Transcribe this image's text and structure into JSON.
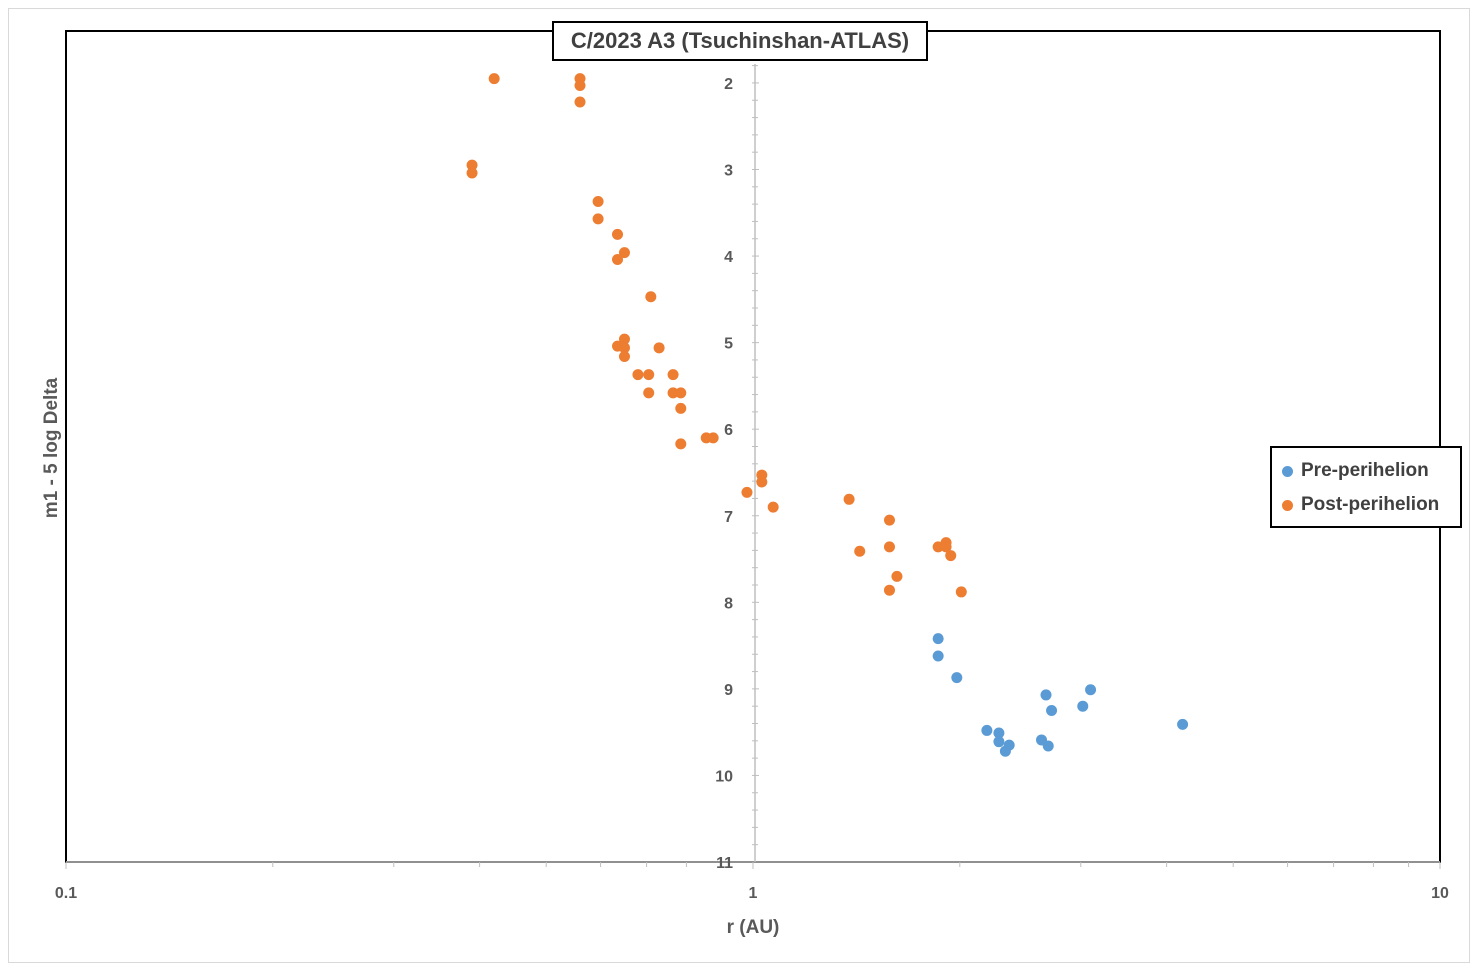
{
  "chart_data": {
    "type": "scatter",
    "title": "C/2023 A3 (Tsuchinshan-ATLAS)",
    "xlabel": "r (AU)",
    "ylabel": "m1 - 5 log Delta",
    "x_scale": "log",
    "xlim": [
      0.1,
      10
    ],
    "ylim": [
      11,
      1.4
    ],
    "y_inverted": true,
    "x_ticks": [
      "0.1",
      "1",
      "10"
    ],
    "y_ticks": [
      "2",
      "3",
      "4",
      "5",
      "6",
      "7",
      "8",
      "9",
      "10",
      "11"
    ],
    "grid": false,
    "legend_position": "right",
    "colors": {
      "pre": "#5b9bd5",
      "post": "#ed7d31"
    },
    "series": [
      {
        "name": "Pre-perihelion",
        "color": "#5b9bd5",
        "points": [
          [
            1.86,
            8.42
          ],
          [
            1.86,
            8.62
          ],
          [
            1.98,
            8.87
          ],
          [
            2.19,
            9.48
          ],
          [
            2.28,
            9.51
          ],
          [
            2.28,
            9.61
          ],
          [
            2.33,
            9.72
          ],
          [
            2.36,
            9.65
          ],
          [
            2.63,
            9.59
          ],
          [
            2.67,
            9.07
          ],
          [
            2.69,
            9.66
          ],
          [
            2.72,
            9.25
          ],
          [
            3.02,
            9.2
          ],
          [
            3.1,
            9.01
          ],
          [
            4.22,
            9.41
          ]
        ]
      },
      {
        "name": "Post-perihelion",
        "color": "#ed7d31",
        "points": [
          [
            0.42,
            1.95
          ],
          [
            0.56,
            1.95
          ],
          [
            0.56,
            2.03
          ],
          [
            0.56,
            2.22
          ],
          [
            0.39,
            2.95
          ],
          [
            0.39,
            3.04
          ],
          [
            0.595,
            3.37
          ],
          [
            0.595,
            3.57
          ],
          [
            0.635,
            3.75
          ],
          [
            0.65,
            3.96
          ],
          [
            0.635,
            4.04
          ],
          [
            0.71,
            4.47
          ],
          [
            0.65,
            4.96
          ],
          [
            0.635,
            5.04
          ],
          [
            0.65,
            5.06
          ],
          [
            0.65,
            5.16
          ],
          [
            0.73,
            5.06
          ],
          [
            0.68,
            5.37
          ],
          [
            0.705,
            5.37
          ],
          [
            0.765,
            5.37
          ],
          [
            0.705,
            5.58
          ],
          [
            0.765,
            5.58
          ],
          [
            0.785,
            5.58
          ],
          [
            0.785,
            5.76
          ],
          [
            0.785,
            6.17
          ],
          [
            0.855,
            6.1
          ],
          [
            0.875,
            6.1
          ],
          [
            1.03,
            6.53
          ],
          [
            1.03,
            6.61
          ],
          [
            0.98,
            6.73
          ],
          [
            1.07,
            6.9
          ],
          [
            1.38,
            6.81
          ],
          [
            1.43,
            7.41
          ],
          [
            1.58,
            7.05
          ],
          [
            1.58,
            7.36
          ],
          [
            1.62,
            7.7
          ],
          [
            1.58,
            7.86
          ],
          [
            1.86,
            7.36
          ],
          [
            1.91,
            7.31
          ],
          [
            1.91,
            7.36
          ],
          [
            1.94,
            7.46
          ],
          [
            2.01,
            7.88
          ]
        ]
      }
    ]
  }
}
